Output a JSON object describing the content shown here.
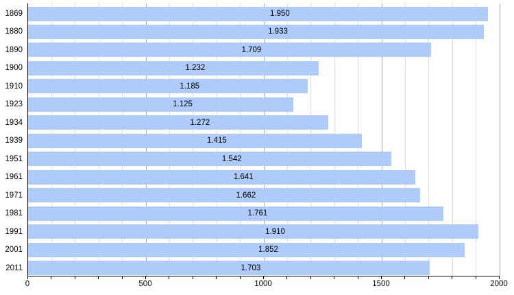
{
  "chart_data": {
    "type": "bar",
    "orientation": "horizontal",
    "title": "",
    "xlabel": "",
    "ylabel": "",
    "categories": [
      "1869",
      "1880",
      "1890",
      "1900",
      "1910",
      "1923",
      "1934",
      "1939",
      "1951",
      "1961",
      "1971",
      "1981",
      "1991",
      "2001",
      "2011"
    ],
    "values": [
      1950,
      1933,
      1709,
      1232,
      1185,
      1125,
      1272,
      1415,
      1542,
      1641,
      1662,
      1761,
      1910,
      1852,
      1703
    ],
    "value_labels": [
      "1.950",
      "1.933",
      "1.709",
      "1.232",
      "1.185",
      "1.125",
      "1.272",
      "1.415",
      "1.542",
      "1.641",
      "1.662",
      "1.761",
      "1.910",
      "1.852",
      "1.703"
    ],
    "xlim": [
      0,
      2000
    ],
    "x_major_ticks": [
      0,
      500,
      1000,
      1500,
      2000
    ],
    "x_tick_labels": [
      "0",
      "500",
      "1000",
      "1500",
      "2000"
    ],
    "x_minor_step": 100,
    "grid": true,
    "legend": false,
    "colors": {
      "bar": "#AFCBFA",
      "minor_gridline": "#DDDDDD",
      "major_gridline": "#A6A6A6",
      "axis": "#000000",
      "text": "#000000",
      "background": "#FFFFFF"
    }
  }
}
